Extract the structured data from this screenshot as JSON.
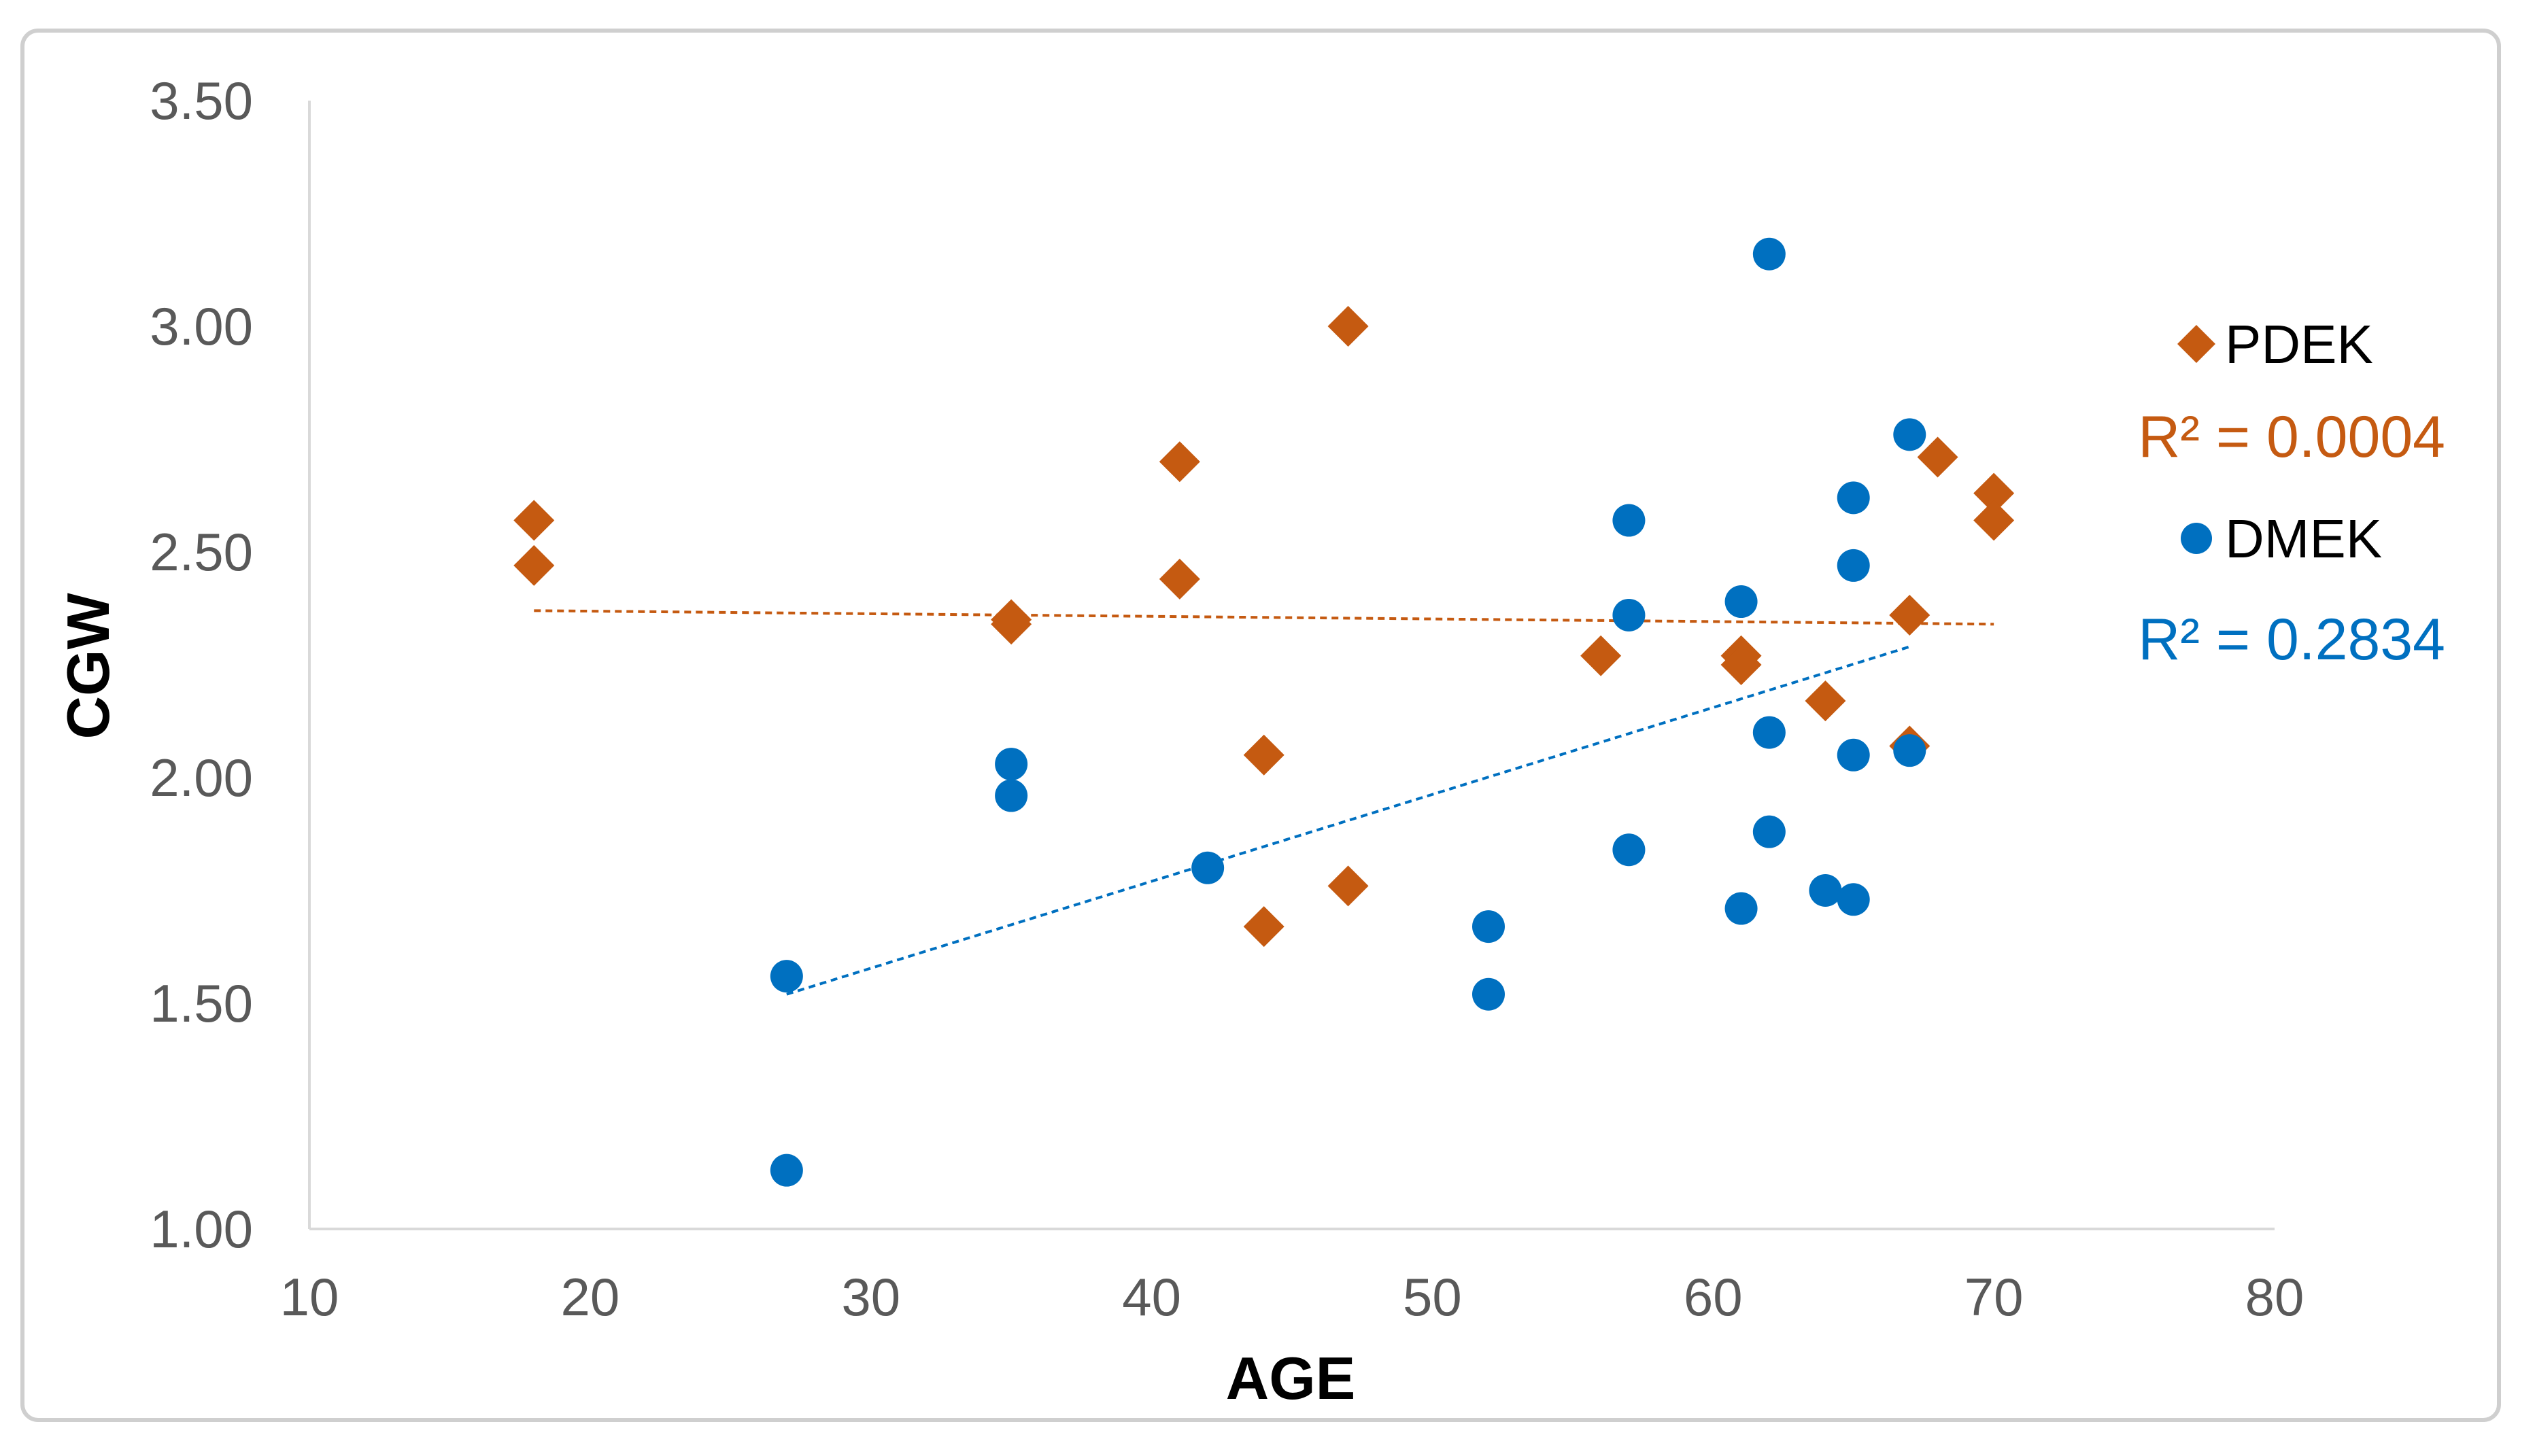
{
  "chart_data": {
    "type": "scatter",
    "title": "",
    "xlabel": "AGE",
    "ylabel": "CGW",
    "xlim": [
      10,
      80
    ],
    "ylim": [
      1.0,
      3.5
    ],
    "x_ticks": [
      "10",
      "20",
      "30",
      "40",
      "50",
      "60",
      "70",
      "80"
    ],
    "y_ticks": [
      "1.00",
      "1.50",
      "2.00",
      "2.50",
      "3.00",
      "3.50"
    ],
    "grid": false,
    "legend_position": "right",
    "series": [
      {
        "name": "PDEK",
        "marker": "diamond",
        "color": "#C55A11",
        "r2_label": "R² = 0.0004",
        "trendline": {
          "x": [
            18,
            70
          ],
          "y": [
            2.37,
            2.34
          ]
        },
        "points": [
          {
            "x": 18,
            "y": 2.57
          },
          {
            "x": 18,
            "y": 2.47
          },
          {
            "x": 35,
            "y": 2.35
          },
          {
            "x": 35,
            "y": 2.34
          },
          {
            "x": 41,
            "y": 2.7
          },
          {
            "x": 41,
            "y": 2.44
          },
          {
            "x": 44,
            "y": 2.05
          },
          {
            "x": 44,
            "y": 1.67
          },
          {
            "x": 47,
            "y": 3.0
          },
          {
            "x": 47,
            "y": 1.76
          },
          {
            "x": 56,
            "y": 2.27
          },
          {
            "x": 61,
            "y": 2.27
          },
          {
            "x": 61,
            "y": 2.25
          },
          {
            "x": 64,
            "y": 2.17
          },
          {
            "x": 67,
            "y": 2.36
          },
          {
            "x": 67,
            "y": 2.07
          },
          {
            "x": 68,
            "y": 2.71
          },
          {
            "x": 70,
            "y": 2.63
          },
          {
            "x": 70,
            "y": 2.57
          }
        ]
      },
      {
        "name": "DMEK",
        "marker": "circle",
        "color": "#0070C0",
        "r2_label": "R² = 0.2834",
        "trendline": {
          "x": [
            27,
            67
          ],
          "y": [
            1.52,
            2.29
          ]
        },
        "points": [
          {
            "x": 27,
            "y": 1.56
          },
          {
            "x": 27,
            "y": 1.13
          },
          {
            "x": 35,
            "y": 2.03
          },
          {
            "x": 35,
            "y": 1.96
          },
          {
            "x": 42,
            "y": 1.8
          },
          {
            "x": 52,
            "y": 1.67
          },
          {
            "x": 52,
            "y": 1.52
          },
          {
            "x": 57,
            "y": 2.57
          },
          {
            "x": 57,
            "y": 2.36
          },
          {
            "x": 57,
            "y": 1.84
          },
          {
            "x": 61,
            "y": 2.39
          },
          {
            "x": 61,
            "y": 1.71
          },
          {
            "x": 62,
            "y": 3.16
          },
          {
            "x": 62,
            "y": 2.1
          },
          {
            "x": 62,
            "y": 1.88
          },
          {
            "x": 64,
            "y": 1.75
          },
          {
            "x": 65,
            "y": 2.62
          },
          {
            "x": 65,
            "y": 2.47
          },
          {
            "x": 65,
            "y": 2.05
          },
          {
            "x": 65,
            "y": 1.73
          },
          {
            "x": 67,
            "y": 2.76
          },
          {
            "x": 67,
            "y": 2.06
          }
        ]
      }
    ]
  }
}
